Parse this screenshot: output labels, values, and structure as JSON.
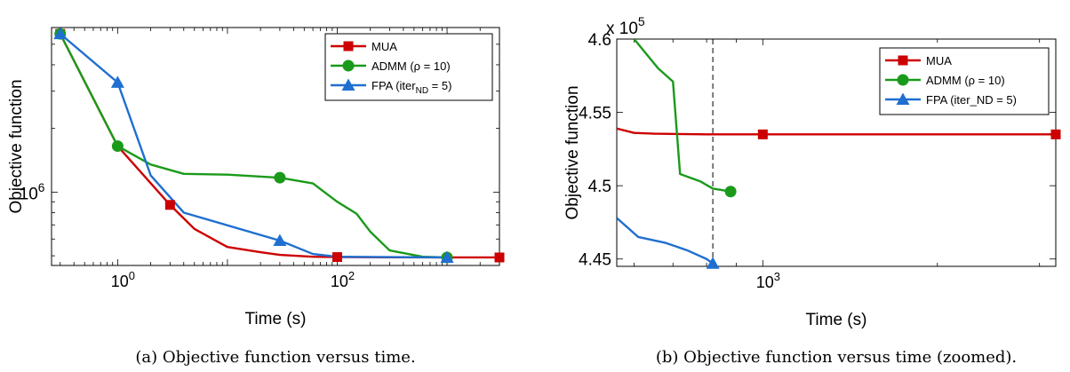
{
  "chart_data": [
    {
      "type": "line",
      "xscale": "log",
      "yscale": "log",
      "xlabel": "Time (s)",
      "ylabel": "Objective function",
      "xlim": [
        0.25,
        3000
      ],
      "ylim": [
        450000,
        6000000
      ],
      "x_ticks": [
        {
          "value": 1,
          "base": "10",
          "exp": "0"
        },
        {
          "value": 100,
          "base": "10",
          "exp": "2"
        }
      ],
      "y_ticks": [
        {
          "value": 1000000,
          "base": "10",
          "exp": "6"
        }
      ],
      "legend_placement": "top-right",
      "grid": false,
      "caption": "(a) Objective function versus time.",
      "series": [
        {
          "name": "MUA",
          "color": "#cc0000",
          "marker": "square",
          "x": [
            0.3,
            1,
            3,
            5,
            10,
            20,
            30,
            60,
            100,
            300,
            1000,
            3000
          ],
          "y": [
            5600000,
            1650000,
            870000,
            670000,
            550000,
            520000,
            505000,
            495000,
            493000,
            492000,
            491000,
            491000
          ],
          "marker_idx": [
            0,
            2,
            8,
            11
          ]
        },
        {
          "name": "ADMM (ρ = 10)",
          "name_base": "ADMM (ρ = 10)",
          "color": "#1a9a1a",
          "marker": "circle",
          "x": [
            0.3,
            1,
            2,
            4,
            10,
            30,
            60,
            100,
            150,
            200,
            300,
            600,
            1000
          ],
          "y": [
            5600000,
            1650000,
            1350000,
            1220000,
            1210000,
            1170000,
            1100000,
            900000,
            790000,
            650000,
            530000,
            495000,
            491000
          ],
          "marker_idx": [
            0,
            1,
            5,
            12
          ]
        },
        {
          "name": "FPA (iter_ND = 5)",
          "name_base": "FPA (iter",
          "name_sub": "ND",
          "name_tail": " = 5)",
          "color": "#1f6fd0",
          "marker": "triangle",
          "x": [
            0.3,
            1,
            2,
            4,
            30,
            60,
            100,
            300,
            1000
          ],
          "y": [
            5600000,
            3300000,
            1200000,
            800000,
            590000,
            510000,
            495000,
            493000,
            491000
          ],
          "marker_idx": [
            0,
            1,
            4,
            8
          ]
        }
      ]
    },
    {
      "type": "line",
      "xscale": "log",
      "yscale": "linear",
      "xlabel": "Time (s)",
      "ylabel": "Objective function",
      "multiplier": "x 10",
      "multiplier_exp": "5",
      "xlim": [
        560,
        3200
      ],
      "ylim": [
        4.445,
        4.6
      ],
      "x_ticks": [
        {
          "value": 1000,
          "base": "10",
          "exp": "3"
        }
      ],
      "y_ticks": [
        {
          "value": 4.45,
          "label": "4.45"
        },
        {
          "value": 4.5,
          "label": "4.5"
        },
        {
          "value": 4.55,
          "label": "4.55"
        },
        {
          "value": 4.6,
          "label": "4.6"
        }
      ],
      "vline_x": 820,
      "legend_placement": "top-right",
      "grid": false,
      "caption": "(b) Objective function versus time (zoomed).",
      "series": [
        {
          "name": "MUA",
          "color": "#cc0000",
          "marker": "square",
          "x": [
            560,
            600,
            650,
            800,
            1000,
            2000,
            3200
          ],
          "y": [
            4.539,
            4.536,
            4.5355,
            4.535,
            4.535,
            4.535,
            4.535
          ],
          "marker_idx": [
            4,
            6
          ]
        },
        {
          "name": "ADMM (ρ = 10)",
          "color": "#1a9a1a",
          "marker": "circle",
          "x": [
            600,
            660,
            700,
            720,
            780,
            820,
            850,
            880
          ],
          "y": [
            4.6,
            4.58,
            4.571,
            4.508,
            4.503,
            4.498,
            4.497,
            4.496
          ],
          "marker_idx": [
            7
          ]
        },
        {
          "name": "FPA (iter_ND = 5)",
          "color": "#1f6fd0",
          "marker": "triangle",
          "x": [
            560,
            610,
            680,
            740,
            800,
            820
          ],
          "y": [
            4.478,
            4.465,
            4.461,
            4.456,
            4.45,
            4.447
          ],
          "marker_idx": [
            5
          ]
        }
      ]
    }
  ]
}
